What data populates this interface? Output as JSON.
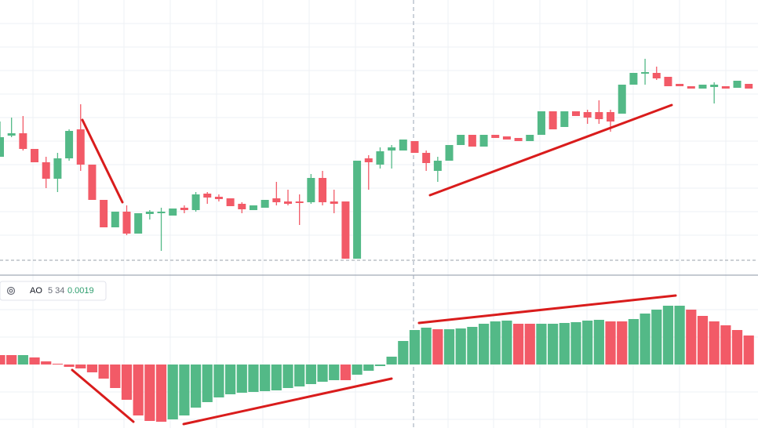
{
  "chart_data": [
    {
      "type": "candlestick",
      "up_color": "#53b987",
      "down_color": "#f25a67",
      "ylim": [
        0,
        350
      ],
      "candles": [
        [
          150,
          195,
          150,
          175
        ],
        [
          177,
          200,
          175,
          180
        ],
        [
          180,
          202,
          158,
          160
        ],
        [
          160,
          160,
          143,
          143
        ],
        [
          143,
          150,
          110,
          122
        ],
        [
          122,
          155,
          105,
          148
        ],
        [
          148,
          185,
          145,
          183
        ],
        [
          185,
          217,
          132,
          140
        ],
        [
          140,
          140,
          95,
          95
        ],
        [
          95,
          95,
          60,
          60
        ],
        [
          60,
          80,
          60,
          80
        ],
        [
          80,
          88,
          50,
          52
        ],
        [
          52,
          78,
          52,
          78
        ],
        [
          77,
          82,
          70,
          80
        ],
        [
          78,
          85,
          30,
          80
        ],
        [
          75,
          84,
          75,
          84
        ],
        [
          85,
          88,
          78,
          82
        ],
        [
          82,
          105,
          80,
          102
        ],
        [
          103,
          105,
          90,
          98
        ],
        [
          99,
          102,
          93,
          96
        ],
        [
          97,
          97,
          87,
          87
        ],
        [
          90,
          92,
          78,
          83
        ],
        [
          82,
          88,
          82,
          88
        ],
        [
          85,
          95,
          85,
          95
        ],
        [
          97,
          118,
          88,
          92
        ],
        [
          93,
          108,
          88,
          90
        ],
        [
          93,
          102,
          63,
          91
        ],
        [
          92,
          128,
          90,
          123
        ],
        [
          123,
          132,
          88,
          92
        ],
        [
          93,
          108,
          78,
          90
        ],
        [
          93,
          93,
          20,
          20
        ],
        [
          20,
          145,
          20,
          145
        ],
        [
          148,
          152,
          108,
          143
        ],
        [
          140,
          162,
          135,
          157
        ],
        [
          158,
          165,
          135,
          162
        ],
        [
          158,
          172,
          158,
          172
        ],
        [
          170,
          170,
          155,
          155
        ],
        [
          155,
          158,
          132,
          142
        ],
        [
          132,
          150,
          118,
          145
        ],
        [
          145,
          165,
          145,
          165
        ],
        [
          165,
          178,
          165,
          178
        ],
        [
          178,
          178,
          163,
          163
        ],
        [
          163,
          178,
          163,
          178
        ],
        [
          178,
          178,
          174,
          174
        ],
        [
          176,
          176,
          172,
          172
        ],
        [
          174,
          174,
          170,
          170
        ],
        [
          170,
          178,
          170,
          178
        ],
        [
          178,
          208,
          178,
          208
        ],
        [
          208,
          208,
          185,
          185
        ],
        [
          188,
          208,
          188,
          208
        ],
        [
          208,
          208,
          202,
          202
        ],
        [
          207,
          210,
          192,
          200
        ],
        [
          207,
          222,
          192,
          198
        ],
        [
          207,
          210,
          182,
          195
        ],
        [
          205,
          242,
          205,
          242
        ],
        [
          242,
          257,
          242,
          257
        ],
        [
          256,
          275,
          242,
          258
        ],
        [
          257,
          265,
          248,
          250
        ],
        [
          252,
          252,
          240,
          240
        ],
        [
          243,
          243,
          240,
          240
        ],
        [
          240,
          240,
          237,
          237
        ],
        [
          237,
          242,
          237,
          242
        ],
        [
          239,
          245,
          218,
          242
        ],
        [
          240,
          240,
          237,
          237
        ],
        [
          238,
          247,
          238,
          247
        ],
        [
          243,
          243,
          237,
          237
        ]
      ]
    },
    {
      "type": "bar",
      "title": "AO",
      "subtitle": "5 34",
      "last_value": 0.0019,
      "ylim": [
        -81,
        113
      ],
      "values": [
        12,
        12,
        12,
        9,
        4,
        1,
        -3,
        -5,
        -10,
        -18,
        -30,
        -45,
        -65,
        -72,
        -73,
        -70,
        -65,
        -55,
        -48,
        -42,
        -38,
        -36,
        -35,
        -34,
        -33,
        -30,
        -28,
        -25,
        -22,
        -20,
        -20,
        -13,
        -8,
        -2,
        10,
        30,
        44,
        47,
        45,
        45,
        46,
        48,
        52,
        55,
        56,
        52,
        52,
        52,
        52,
        53,
        54,
        56,
        57,
        55,
        55,
        58,
        65,
        70,
        75,
        75,
        70,
        62,
        55,
        50,
        44,
        37
      ],
      "colors": [
        "#f25a67",
        "#f25a67",
        "#53b987",
        "#f25a67",
        "#f25a67",
        "#f25a67",
        "#f25a67",
        "#f25a67",
        "#f25a67",
        "#f25a67",
        "#f25a67",
        "#f25a67",
        "#f25a67",
        "#f25a67",
        "#f25a67",
        "#53b987",
        "#53b987",
        "#53b987",
        "#53b987",
        "#53b987",
        "#53b987",
        "#53b987",
        "#53b987",
        "#53b987",
        "#53b987",
        "#53b987",
        "#53b987",
        "#53b987",
        "#53b987",
        "#53b987",
        "#f25a67",
        "#53b987",
        "#53b987",
        "#53b987",
        "#53b987",
        "#53b987",
        "#53b987",
        "#53b987",
        "#f25a67",
        "#53b987",
        "#53b987",
        "#53b987",
        "#53b987",
        "#53b987",
        "#53b987",
        "#f25a67",
        "#f25a67",
        "#53b987",
        "#53b987",
        "#53b987",
        "#53b987",
        "#53b987",
        "#53b987",
        "#f25a67",
        "#f25a67",
        "#53b987",
        "#53b987",
        "#53b987",
        "#53b987",
        "#53b987",
        "#f25a67",
        "#f25a67",
        "#f25a67",
        "#f25a67",
        "#f25a67",
        "#f25a67"
      ]
    }
  ]
}
